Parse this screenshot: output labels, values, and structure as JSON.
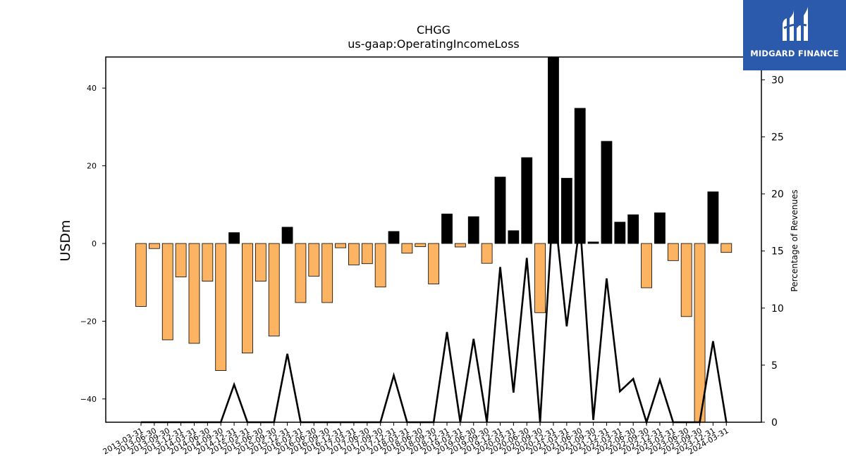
{
  "chart_data": {
    "type": "bar",
    "title": "CHGG",
    "subtitle": "us-gaap:OperatingIncomeLoss",
    "ylabel": "USDm",
    "y2label": "Percentage of Revenues",
    "ylim": [
      -46,
      48
    ],
    "y2lim": [
      0,
      32
    ],
    "yticks": [
      -40,
      -20,
      0,
      20,
      40
    ],
    "y2ticks": [
      0,
      5,
      10,
      15,
      20,
      25,
      30
    ],
    "categories": [
      "2013-03-31",
      "2013-06-30",
      "2013-09-30",
      "2013-12-31",
      "2014-03-31",
      "2014-06-30",
      "2014-09-30",
      "2014-12-31",
      "2015-03-31",
      "2015-06-30",
      "2015-09-30",
      "2015-12-31",
      "2016-03-31",
      "2016-06-30",
      "2016-09-30",
      "2016-12-31",
      "2017-03-31",
      "2017-06-30",
      "2017-09-30",
      "2017-12-31",
      "2018-03-31",
      "2018-06-30",
      "2018-09-30",
      "2018-12-31",
      "2019-03-31",
      "2019-06-30",
      "2019-09-30",
      "2019-12-31",
      "2020-03-31",
      "2020-06-30",
      "2020-09-30",
      "2020-12-31",
      "2021-03-31",
      "2021-06-30",
      "2021-09-30",
      "2021-12-31",
      "2022-03-31",
      "2022-06-30",
      "2022-09-30",
      "2022-12-31",
      "2023-03-31",
      "2023-06-30",
      "2023-09-30",
      "2023-12-31",
      "2024-03-31"
    ],
    "series": [
      {
        "type": "bar",
        "values": [
          -16.2,
          -1.3,
          -24.8,
          -8.6,
          -25.7,
          -9.7,
          -32.7,
          2.8,
          -28.2,
          -9.7,
          -23.8,
          4.2,
          -15.2,
          -8.4,
          -15.2,
          -1.1,
          -5.5,
          -5.2,
          -11.2,
          3.1,
          -2.5,
          -0.8,
          -10.4,
          7.6,
          -0.9,
          6.9,
          -5.1,
          17.1,
          3.3,
          22.1,
          -17.8,
          48,
          16.8,
          34.8,
          0.4,
          26.3,
          5.5,
          7.4,
          -11.4,
          7.9,
          -4.4,
          -18.8,
          -46,
          13.3,
          -2.3
        ]
      },
      {
        "type": "line",
        "axis": "right",
        "color": "#000000",
        "values": [
          0,
          0,
          0,
          0,
          0,
          0,
          0,
          3.3,
          0,
          0,
          0,
          6.0,
          0,
          0,
          0,
          0,
          0,
          0,
          0,
          4.1,
          0,
          0,
          0,
          7.9,
          0,
          7.3,
          0,
          13.6,
          2.6,
          14.4,
          0,
          19.5,
          8.4,
          17.5,
          0.2,
          12.6,
          2.7,
          3.8,
          0,
          3.7,
          0,
          0,
          0,
          7.1,
          0
        ]
      }
    ]
  },
  "colors": {
    "positive_bar": "#000000",
    "negative_bar": "#fdb462",
    "bar_edge": "#000000",
    "line": "#000000",
    "logo_bg": "#2b5aad"
  },
  "logo": {
    "text": "MIDGARD FINANCE",
    "icon": "midgard-logo-icon"
  }
}
